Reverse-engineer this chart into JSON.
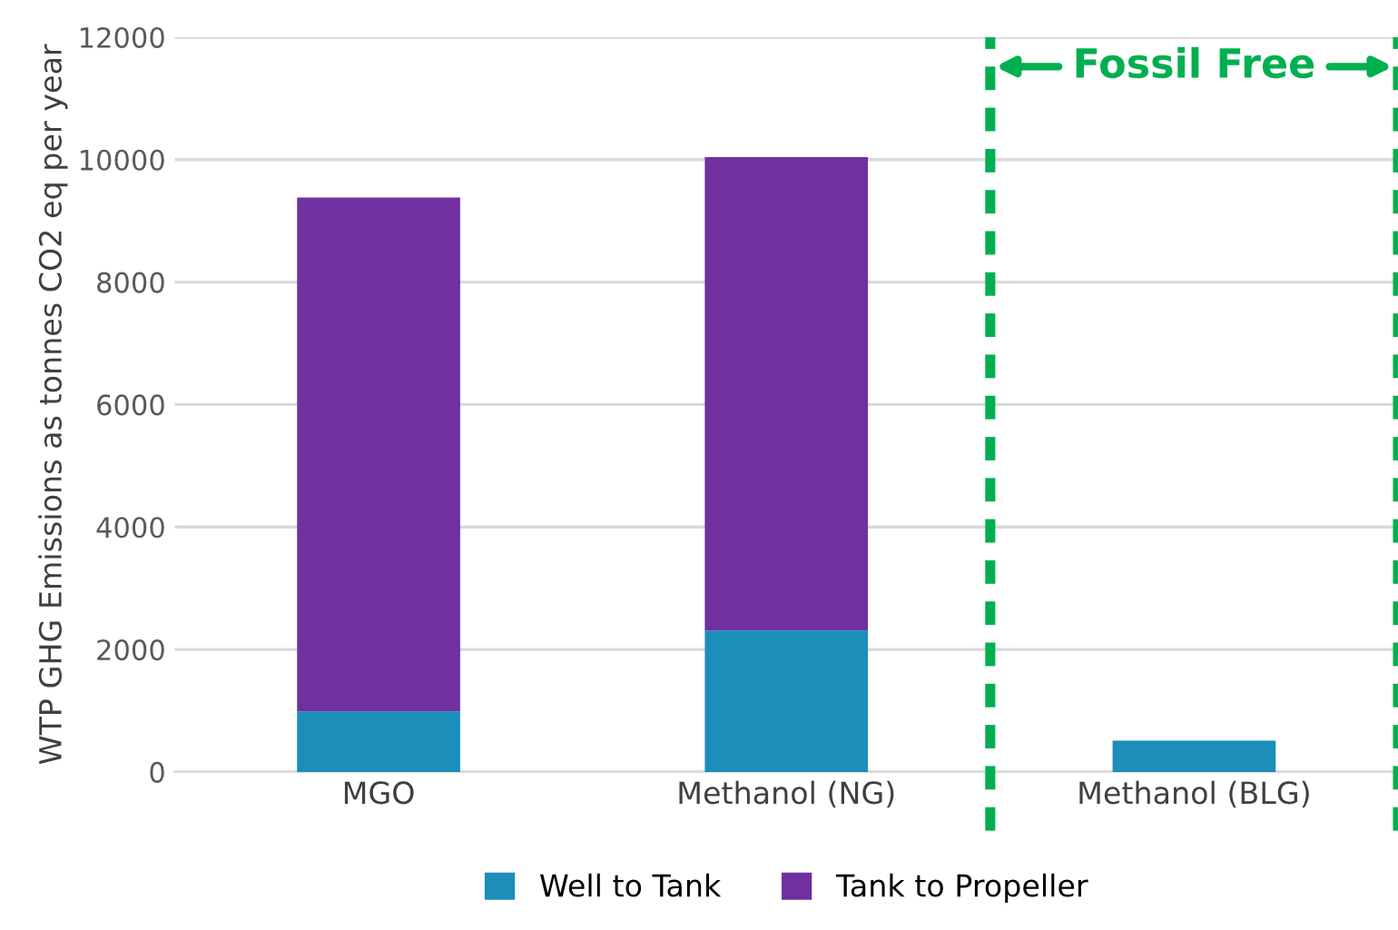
{
  "chart_data": {
    "type": "bar",
    "stacked": true,
    "ylabel": "WTP GHG Emissions as tonnes CO2 eq per year",
    "categories": [
      "MGO",
      "Methanol (NG)",
      "Methanol (BLG)"
    ],
    "series": [
      {
        "name": "Well to Tank",
        "color": "#1b8eb9",
        "values": [
          990,
          2310,
          510
        ]
      },
      {
        "name": "Tank to Propeller",
        "color": "#7030a0",
        "values": [
          8390,
          7730,
          0
        ]
      }
    ],
    "ylim": [
      0,
      12000
    ],
    "yticks": [
      0,
      2000,
      4000,
      6000,
      8000,
      10000,
      12000
    ],
    "grid": "y",
    "legend": "bottom",
    "annotations": [
      "Fossil Free"
    ]
  }
}
